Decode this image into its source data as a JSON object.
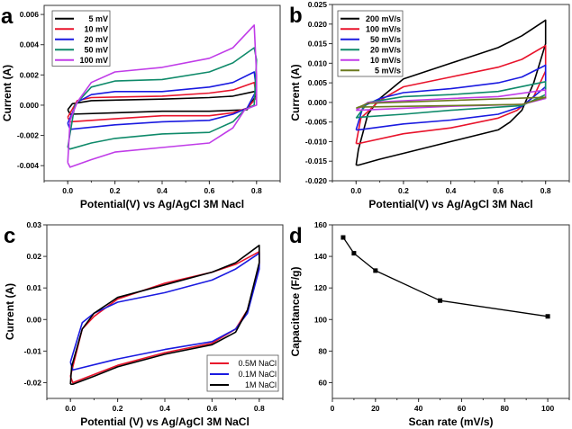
{
  "chart_data": [
    {
      "id": "a",
      "panel_label": "a",
      "type": "line",
      "xlabel": "Potential(V) vs Ag/AgCl 3M Nacl",
      "ylabel": "Current (A)",
      "xlim": [
        -0.1,
        0.9
      ],
      "ylim": [
        -0.005,
        0.0066
      ],
      "xticks": [
        0.0,
        0.2,
        0.4,
        0.6,
        0.8
      ],
      "yticks": [
        -0.004,
        -0.002,
        0.0,
        0.002,
        0.004,
        0.006
      ],
      "xdec": 1,
      "ydec": 3,
      "legend": "top-left",
      "grid": false,
      "series": [
        {
          "name": "5 mV",
          "color": "#000000",
          "points": [
            [
              0,
              -0.0003
            ],
            [
              0.02,
              0.0001
            ],
            [
              0.1,
              0.0003
            ],
            [
              0.4,
              0.0004
            ],
            [
              0.6,
              0.0005
            ],
            [
              0.7,
              0.0006
            ],
            [
              0.79,
              0.0009
            ],
            [
              0.8,
              0.0007
            ],
            [
              0.76,
              -0.0003
            ],
            [
              0.6,
              -0.0004
            ],
            [
              0.4,
              -0.0004
            ],
            [
              0.2,
              -0.0005
            ],
            [
              0.01,
              -0.0006
            ],
            [
              0,
              -0.0003
            ]
          ]
        },
        {
          "name": "10 mV",
          "color": "#e8132b",
          "points": [
            [
              0,
              -0.0008
            ],
            [
              0.04,
              0.0003
            ],
            [
              0.1,
              0.0005
            ],
            [
              0.4,
              0.0006
            ],
            [
              0.6,
              0.0008
            ],
            [
              0.7,
              0.001
            ],
            [
              0.79,
              0.0015
            ],
            [
              0.8,
              0.0005
            ],
            [
              0.76,
              -0.0002
            ],
            [
              0.7,
              -0.0005
            ],
            [
              0.6,
              -0.0007
            ],
            [
              0.4,
              -0.0007
            ],
            [
              0.2,
              -0.0009
            ],
            [
              0.01,
              -0.0011
            ],
            [
              0,
              -0.0008
            ]
          ]
        },
        {
          "name": "20 mV",
          "color": "#1a1ae0",
          "points": [
            [
              0,
              -0.0012
            ],
            [
              0.04,
              0.0002
            ],
            [
              0.1,
              0.0007
            ],
            [
              0.2,
              0.0009
            ],
            [
              0.4,
              0.0009
            ],
            [
              0.6,
              0.0012
            ],
            [
              0.7,
              0.0015
            ],
            [
              0.79,
              0.0022
            ],
            [
              0.8,
              0.001
            ],
            [
              0.76,
              -0.0002
            ],
            [
              0.7,
              -0.0006
            ],
            [
              0.6,
              -0.001
            ],
            [
              0.4,
              -0.0011
            ],
            [
              0.2,
              -0.0013
            ],
            [
              0.01,
              -0.0016
            ],
            [
              0,
              -0.0012
            ]
          ]
        },
        {
          "name": "50 mV",
          "color": "#0f8a6a",
          "points": [
            [
              0,
              -0.0028
            ],
            [
              0.03,
              0
            ],
            [
              0.1,
              0.0012
            ],
            [
              0.2,
              0.0016
            ],
            [
              0.4,
              0.0017
            ],
            [
              0.6,
              0.0022
            ],
            [
              0.7,
              0.0028
            ],
            [
              0.79,
              0.0038
            ],
            [
              0.8,
              0.003
            ],
            [
              0.79,
              0
            ],
            [
              0.75,
              -0.0003
            ],
            [
              0.7,
              -0.0011
            ],
            [
              0.6,
              -0.0018
            ],
            [
              0.4,
              -0.0019
            ],
            [
              0.2,
              -0.0022
            ],
            [
              0.1,
              -0.0025
            ],
            [
              0.01,
              -0.0029
            ],
            [
              0,
              -0.0028
            ]
          ]
        },
        {
          "name": "100 mV",
          "color": "#c03ce8",
          "points": [
            [
              0,
              -0.0038
            ],
            [
              0.01,
              -0.001
            ],
            [
              0.04,
              0.0002
            ],
            [
              0.1,
              0.0015
            ],
            [
              0.2,
              0.0022
            ],
            [
              0.4,
              0.0025
            ],
            [
              0.6,
              0.0031
            ],
            [
              0.7,
              0.0038
            ],
            [
              0.79,
              0.0053
            ],
            [
              0.8,
              0.002
            ],
            [
              0.8,
              0
            ],
            [
              0.75,
              -0.0003
            ],
            [
              0.7,
              -0.0015
            ],
            [
              0.6,
              -0.0025
            ],
            [
              0.4,
              -0.0028
            ],
            [
              0.2,
              -0.0031
            ],
            [
              0.1,
              -0.0036
            ],
            [
              0.01,
              -0.0041
            ],
            [
              0,
              -0.0038
            ]
          ]
        }
      ]
    },
    {
      "id": "b",
      "panel_label": "b",
      "type": "line",
      "xlabel": "Potential(V) vs Ag/AgCl 3M Nacl",
      "ylabel": "Current (A)",
      "xlim": [
        -0.1,
        0.9
      ],
      "ylim": [
        -0.02,
        0.025
      ],
      "xticks": [
        0.0,
        0.2,
        0.4,
        0.6,
        0.8
      ],
      "yticks": [
        -0.02,
        -0.015,
        -0.01,
        -0.005,
        0.0,
        0.005,
        0.01,
        0.015,
        0.02,
        0.025
      ],
      "xdec": 1,
      "ydec": 3,
      "legend": "top-left",
      "grid": false,
      "series": [
        {
          "name": "200 mV/s",
          "color": "#000000",
          "points": [
            [
              0,
              -0.016
            ],
            [
              0.01,
              -0.012
            ],
            [
              0.05,
              -0.003
            ],
            [
              0.1,
              0.001
            ],
            [
              0.2,
              0.006
            ],
            [
              0.4,
              0.01
            ],
            [
              0.6,
              0.014
            ],
            [
              0.7,
              0.017
            ],
            [
              0.8,
              0.021
            ],
            [
              0.8,
              0.015
            ],
            [
              0.75,
              0.005
            ],
            [
              0.7,
              -0.002
            ],
            [
              0.65,
              -0.005
            ],
            [
              0.6,
              -0.007
            ],
            [
              0.4,
              -0.01
            ],
            [
              0.2,
              -0.013
            ],
            [
              0.1,
              -0.0145
            ],
            [
              0.01,
              -0.016
            ],
            [
              0,
              -0.016
            ]
          ]
        },
        {
          "name": "100 mV/s",
          "color": "#e8132b",
          "points": [
            [
              0,
              -0.0105
            ],
            [
              0.02,
              -0.004
            ],
            [
              0.1,
              0.0005
            ],
            [
              0.2,
              0.004
            ],
            [
              0.4,
              0.0065
            ],
            [
              0.6,
              0.009
            ],
            [
              0.7,
              0.011
            ],
            [
              0.8,
              0.0145
            ],
            [
              0.8,
              0.008
            ],
            [
              0.75,
              0.0015
            ],
            [
              0.68,
              -0.002
            ],
            [
              0.6,
              -0.004
            ],
            [
              0.4,
              -0.0065
            ],
            [
              0.2,
              -0.008
            ],
            [
              0.01,
              -0.0105
            ],
            [
              0,
              -0.0105
            ]
          ]
        },
        {
          "name": "50 mV/s",
          "color": "#1a1ae0",
          "points": [
            [
              0,
              -0.007
            ],
            [
              0.03,
              -0.001
            ],
            [
              0.1,
              0.001
            ],
            [
              0.2,
              0.0025
            ],
            [
              0.4,
              0.0035
            ],
            [
              0.6,
              0.005
            ],
            [
              0.7,
              0.0065
            ],
            [
              0.8,
              0.0095
            ],
            [
              0.8,
              0.004
            ],
            [
              0.7,
              -0.001
            ],
            [
              0.6,
              -0.003
            ],
            [
              0.4,
              -0.0045
            ],
            [
              0.2,
              -0.0055
            ],
            [
              0.01,
              -0.007
            ],
            [
              0,
              -0.007
            ]
          ]
        },
        {
          "name": "20 mV/s",
          "color": "#0f8a6a",
          "points": [
            [
              0,
              -0.004
            ],
            [
              0.05,
              0
            ],
            [
              0.2,
              0.0015
            ],
            [
              0.4,
              0.002
            ],
            [
              0.6,
              0.0028
            ],
            [
              0.8,
              0.0053
            ],
            [
              0.8,
              0.002
            ],
            [
              0.7,
              -0.0008
            ],
            [
              0.4,
              -0.002
            ],
            [
              0.2,
              -0.003
            ],
            [
              0.01,
              -0.0038
            ],
            [
              0,
              -0.004
            ]
          ]
        },
        {
          "name": "10 mV/s",
          "color": "#c03ce8",
          "points": [
            [
              0,
              -0.002
            ],
            [
              0.05,
              0
            ],
            [
              0.4,
              0.001
            ],
            [
              0.6,
              0.0015
            ],
            [
              0.8,
              0.0032
            ],
            [
              0.8,
              0.001
            ],
            [
              0.7,
              -0.0005
            ],
            [
              0.4,
              -0.001
            ],
            [
              0.2,
              -0.0015
            ],
            [
              0.01,
              -0.002
            ],
            [
              0,
              -0.002
            ]
          ]
        },
        {
          "name": "5 mV/s",
          "color": "#6b7a1e",
          "points": [
            [
              0,
              -0.0015
            ],
            [
              0.05,
              -0.0002
            ],
            [
              0.4,
              0.0005
            ],
            [
              0.8,
              0.0013
            ],
            [
              0.7,
              -0.0005
            ],
            [
              0.4,
              -0.0008
            ],
            [
              0.01,
              -0.0012
            ],
            [
              0,
              -0.0015
            ]
          ]
        }
      ]
    },
    {
      "id": "c",
      "panel_label": "c",
      "type": "line",
      "xlabel": "Potential (V) vs Ag/AgCl 3M NaCl",
      "ylabel": "Current (A)",
      "xlim": [
        -0.1,
        0.9
      ],
      "ylim": [
        -0.025,
        0.03
      ],
      "xticks": [
        0.0,
        0.2,
        0.4,
        0.6,
        0.8
      ],
      "yticks": [
        -0.02,
        -0.01,
        0.0,
        0.01,
        0.02,
        0.03
      ],
      "xdec": 1,
      "ydec": 2,
      "legend": "bottom-right",
      "grid": false,
      "series": [
        {
          "name": "0.5M NaCl",
          "color": "#e8132b",
          "points": [
            [
              0,
              -0.018
            ],
            [
              0.05,
              -0.003
            ],
            [
              0.1,
              0.001
            ],
            [
              0.2,
              0.0065
            ],
            [
              0.4,
              0.0115
            ],
            [
              0.6,
              0.015
            ],
            [
              0.7,
              0.0175
            ],
            [
              0.8,
              0.0215
            ],
            [
              0.8,
              0.017
            ],
            [
              0.75,
              0.003
            ],
            [
              0.7,
              -0.003
            ],
            [
              0.6,
              -0.0075
            ],
            [
              0.4,
              -0.0105
            ],
            [
              0.2,
              -0.0145
            ],
            [
              0.01,
              -0.02
            ],
            [
              0,
              -0.018
            ]
          ]
        },
        {
          "name": "0.1M NaCl",
          "color": "#1a1ae0",
          "points": [
            [
              0,
              -0.0135
            ],
            [
              0.05,
              -0.001
            ],
            [
              0.1,
              0.002
            ],
            [
              0.2,
              0.0055
            ],
            [
              0.4,
              0.0085
            ],
            [
              0.6,
              0.0125
            ],
            [
              0.7,
              0.016
            ],
            [
              0.8,
              0.021
            ],
            [
              0.8,
              0.016
            ],
            [
              0.75,
              0.002
            ],
            [
              0.7,
              -0.003
            ],
            [
              0.6,
              -0.007
            ],
            [
              0.4,
              -0.0095
            ],
            [
              0.2,
              -0.0125
            ],
            [
              0.01,
              -0.016
            ],
            [
              0,
              -0.0135
            ]
          ]
        },
        {
          "name": "1M NaCl",
          "color": "#000000",
          "points": [
            [
              0,
              -0.0205
            ],
            [
              0.005,
              -0.015
            ],
            [
              0.05,
              -0.003
            ],
            [
              0.1,
              0.002
            ],
            [
              0.2,
              0.007
            ],
            [
              0.4,
              0.011
            ],
            [
              0.6,
              0.015
            ],
            [
              0.7,
              0.018
            ],
            [
              0.8,
              0.0235
            ],
            [
              0.8,
              0.018
            ],
            [
              0.75,
              0.003
            ],
            [
              0.7,
              -0.004
            ],
            [
              0.6,
              -0.008
            ],
            [
              0.4,
              -0.011
            ],
            [
              0.2,
              -0.015
            ],
            [
              0.1,
              -0.018
            ],
            [
              0.01,
              -0.0205
            ],
            [
              0,
              -0.0205
            ]
          ]
        }
      ]
    },
    {
      "id": "d",
      "panel_label": "d",
      "type": "line",
      "xlabel": "Scan rate (mV/s)",
      "ylabel": "Capacitance (F/g)",
      "xlim": [
        0,
        110
      ],
      "ylim": [
        50,
        160
      ],
      "xticks": [
        0,
        20,
        40,
        60,
        80,
        100
      ],
      "yticks": [
        60,
        80,
        100,
        120,
        140,
        160
      ],
      "xdec": 0,
      "ydec": 0,
      "legend": "none",
      "grid": false,
      "markers": "square",
      "series": [
        {
          "color": "#000000",
          "points": [
            [
              5,
              152
            ],
            [
              10,
              142
            ],
            [
              20,
              131
            ],
            [
              50,
              112
            ],
            [
              100,
              102
            ]
          ]
        }
      ]
    }
  ]
}
